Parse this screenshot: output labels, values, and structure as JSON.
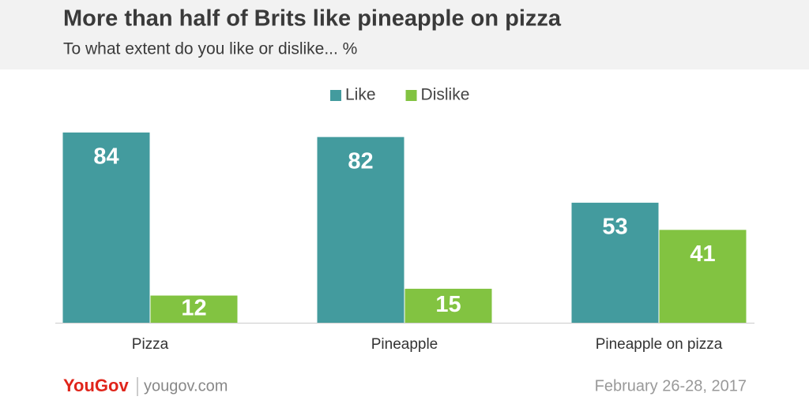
{
  "chart_data": {
    "type": "bar",
    "title": "More than half of Brits like pineapple on pizza",
    "subtitle": "To what extent do you like or dislike... %",
    "categories": [
      "Pizza",
      "Pineapple",
      "Pineapple on pizza"
    ],
    "series": [
      {
        "name": "Like",
        "color": "#439b9e",
        "values": [
          84,
          82,
          53
        ]
      },
      {
        "name": "Dislike",
        "color": "#82c341",
        "values": [
          12,
          15,
          41
        ]
      }
    ],
    "legend": "top",
    "grid": false
  },
  "footer": {
    "brand": "YouGov",
    "site": "yougov.com",
    "date": "February 26-28, 2017"
  }
}
